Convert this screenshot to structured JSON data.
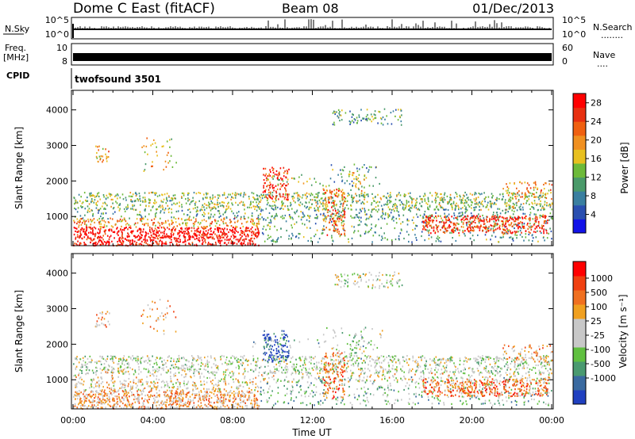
{
  "header": {
    "station": "Dome C East (fitACF)",
    "beam": "Beam 08",
    "date": "01/Dec/2013"
  },
  "noise_panel": {
    "left_label": "N.Sky",
    "right_label": "N.Search",
    "right_dots": "........",
    "left_ticks": [
      "10^5",
      "10^0"
    ],
    "right_ticks": [
      "10^5",
      "10^0"
    ]
  },
  "freq_panel": {
    "left_label_1": "Freq.",
    "left_label_2": "[MHz]",
    "left_ticks": [
      "10",
      "8"
    ],
    "right_ticks": [
      "60",
      "0"
    ],
    "right_label": "Nave",
    "right_dots": "...."
  },
  "cpid_panel": {
    "label": "CPID",
    "program": "twofsound 3501"
  },
  "colors": {
    "power_scale": [
      "#1212e8",
      "#2a4fb0",
      "#3a7fa0",
      "#4a9a6a",
      "#6dba3a",
      "#e8c020",
      "#f09020",
      "#f06010",
      "#e83010",
      "#ff0000"
    ],
    "velocity_scale": [
      "#2040c0",
      "#3a6aa0",
      "#4a9a70",
      "#60c040",
      "#c8c8c8",
      "#c8c8c8",
      "#f0a020",
      "#f07020",
      "#f04010",
      "#ff0000"
    ]
  },
  "chart_data": [
    {
      "type": "heatmap",
      "quantity": "power",
      "ylabel": "Slant Range [km]",
      "yticks": [
        1000,
        2000,
        3000,
        4000
      ],
      "ylim": [
        180,
        4550
      ],
      "xlabel": "",
      "xticks": [
        "00:00",
        "04:00",
        "08:00",
        "12:00",
        "16:00",
        "20:00",
        "00:00"
      ],
      "xlim_hours": [
        0,
        24
      ],
      "colorbar_label": "Power [dB]",
      "colorbar_ticks": [
        "28",
        "24",
        "20",
        "16",
        "12",
        "8",
        "4"
      ],
      "colorbar_range": [
        0,
        30
      ]
    },
    {
      "type": "heatmap",
      "quantity": "velocity",
      "ylabel": "Slant Range [km]",
      "yticks": [
        1000,
        2000,
        3000,
        4000
      ],
      "ylim": [
        180,
        4550
      ],
      "xlabel": "Time UT",
      "xticks": [
        "00:00",
        "04:00",
        "08:00",
        "12:00",
        "16:00",
        "20:00",
        "00:00"
      ],
      "xlim_hours": [
        0,
        24
      ],
      "colorbar_label": "Velocity [m s⁻¹]",
      "colorbar_ticks": [
        "1000",
        "500",
        "100",
        "25",
        "-25",
        "-100",
        "-500",
        "-1000"
      ]
    }
  ]
}
